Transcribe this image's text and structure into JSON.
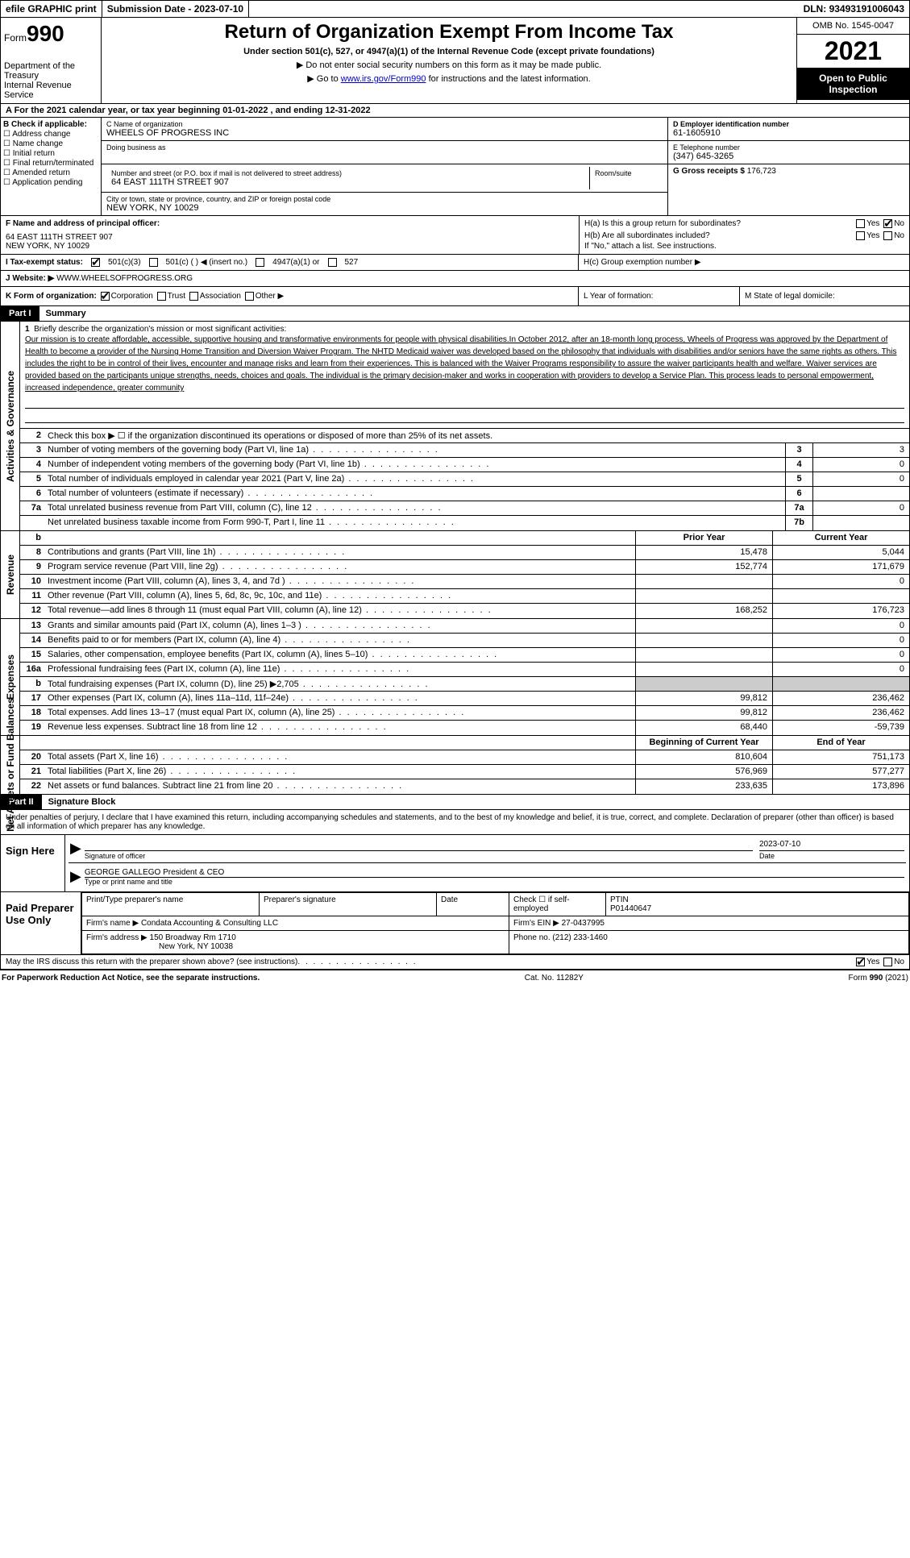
{
  "topbar": {
    "efile": "efile GRAPHIC print",
    "submission_label": "Submission Date - ",
    "submission_date": "2023-07-10",
    "dln_label": "DLN: ",
    "dln": "93493191006043"
  },
  "header": {
    "form_prefix": "Form",
    "form_no": "990",
    "dept": "Department of the Treasury",
    "irs": "Internal Revenue Service",
    "title": "Return of Organization Exempt From Income Tax",
    "subtitle": "Under section 501(c), 527, or 4947(a)(1) of the Internal Revenue Code (except private foundations)",
    "note1": "▶ Do not enter social security numbers on this form as it may be made public.",
    "note2_prefix": "▶ Go to ",
    "note2_link": "www.irs.gov/Form990",
    "note2_suffix": " for instructions and the latest information.",
    "omb": "OMB No. 1545-0047",
    "year": "2021",
    "inspect": "Open to Public Inspection"
  },
  "row_a": "A For the 2021 calendar year, or tax year beginning 01-01-2022   , and ending 12-31-2022",
  "box_b": {
    "title": "B Check if applicable:",
    "items": [
      "Address change",
      "Name change",
      "Initial return",
      "Final return/terminated",
      "Amended return",
      "Application pending"
    ]
  },
  "box_c": {
    "label": "C Name of organization",
    "name": "WHEELS OF PROGRESS INC",
    "dba_label": "Doing business as",
    "addr_label": "Number and street (or P.O. box if mail is not delivered to street address)",
    "room_label": "Room/suite",
    "addr": "64 EAST 111TH STREET 907",
    "city_label": "City or town, state or province, country, and ZIP or foreign postal code",
    "city": "NEW YORK, NY  10029"
  },
  "box_d": {
    "label": "D Employer identification number",
    "val": "61-1605910"
  },
  "box_e": {
    "label": "E Telephone number",
    "val": "(347) 645-3265"
  },
  "box_g": {
    "label": "G Gross receipts $ ",
    "val": "176,723"
  },
  "box_f": {
    "label": "F  Name and address of principal officer:",
    "line1": "64 EAST 111TH STREET 907",
    "line2": "NEW YORK, NY  10029"
  },
  "box_h": {
    "ha": "H(a)  Is this a group return for subordinates?",
    "hb": "H(b)  Are all subordinates included?",
    "hb_note": "If \"No,\" attach a list. See instructions.",
    "hc": "H(c)  Group exemption number ▶",
    "yes": "Yes",
    "no": "No"
  },
  "row_i": {
    "label": "I   Tax-exempt status:",
    "c3": "501(c)(3)",
    "c": "501(c) (  ) ◀ (insert no.)",
    "a1": "4947(a)(1) or",
    "s527": "527"
  },
  "row_j": {
    "label": "J  Website: ▶  ",
    "val": "WWW.WHEELSOFPROGRESS.ORG"
  },
  "row_k": {
    "label": "K Form of organization:",
    "corp": "Corporation",
    "trust": "Trust",
    "assoc": "Association",
    "other": "Other ▶"
  },
  "row_l": "L Year of formation:",
  "row_m": "M State of legal domicile:",
  "part1": {
    "tab": "Part I",
    "title": "Summary"
  },
  "side_labels": {
    "ag": "Activities & Governance",
    "rev": "Revenue",
    "exp": "Expenses",
    "na": "Net Assets or Fund Balances"
  },
  "mission": {
    "num": "1",
    "label": "Briefly describe the organization's mission or most significant activities:",
    "text": "Our mission is to create affordable, accessible, supportive housing and transformative environments for people with physical disabilities.In October 2012, after an 18-month long process, Wheels of Progress was approved by the Department of Health to become a provider of the Nursing Home Transition and Diversion Waiver Program. The NHTD Medicaid waiver was developed based on the philosophy that individuals with disabilities and/or seniors have the same rights as others. This includes the right to be in control of their lives, encounter and manage risks and learn from their experiences. This is balanced with the Waiver Programs responsibility to assure the waiver participants health and welfare. Waiver services are provided based on the participants unique strengths, needs, choices and goals. The individual is the primary decision-maker and works in cooperation with providers to develop a Service Plan. This process leads to personal empowerment, increased independence, greater community"
  },
  "lines_ag": [
    {
      "n": "2",
      "d": "Check this box ▶ ☐ if the organization discontinued its operations or disposed of more than 25% of its net assets."
    },
    {
      "n": "3",
      "d": "Number of voting members of the governing body (Part VI, line 1a)",
      "bn": "3",
      "bv": "3"
    },
    {
      "n": "4",
      "d": "Number of independent voting members of the governing body (Part VI, line 1b)",
      "bn": "4",
      "bv": "0"
    },
    {
      "n": "5",
      "d": "Total number of individuals employed in calendar year 2021 (Part V, line 2a)",
      "bn": "5",
      "bv": "0"
    },
    {
      "n": "6",
      "d": "Total number of volunteers (estimate if necessary)",
      "bn": "6",
      "bv": ""
    },
    {
      "n": "7a",
      "d": "Total unrelated business revenue from Part VIII, column (C), line 12",
      "bn": "7a",
      "bv": "0"
    },
    {
      "n": "",
      "d": "Net unrelated business taxable income from Form 990-T, Part I, line 11",
      "bn": "7b",
      "bv": ""
    }
  ],
  "col_hdrs": {
    "py": "Prior Year",
    "cy": "Current Year"
  },
  "lines_rev": [
    {
      "n": "8",
      "d": "Contributions and grants (Part VIII, line 1h)",
      "py": "15,478",
      "cy": "5,044"
    },
    {
      "n": "9",
      "d": "Program service revenue (Part VIII, line 2g)",
      "py": "152,774",
      "cy": "171,679"
    },
    {
      "n": "10",
      "d": "Investment income (Part VIII, column (A), lines 3, 4, and 7d )",
      "py": "",
      "cy": "0"
    },
    {
      "n": "11",
      "d": "Other revenue (Part VIII, column (A), lines 5, 6d, 8c, 9c, 10c, and 11e)",
      "py": "",
      "cy": ""
    },
    {
      "n": "12",
      "d": "Total revenue—add lines 8 through 11 (must equal Part VIII, column (A), line 12)",
      "py": "168,252",
      "cy": "176,723"
    }
  ],
  "lines_exp": [
    {
      "n": "13",
      "d": "Grants and similar amounts paid (Part IX, column (A), lines 1–3 )",
      "py": "",
      "cy": "0"
    },
    {
      "n": "14",
      "d": "Benefits paid to or for members (Part IX, column (A), line 4)",
      "py": "",
      "cy": "0"
    },
    {
      "n": "15",
      "d": "Salaries, other compensation, employee benefits (Part IX, column (A), lines 5–10)",
      "py": "",
      "cy": "0"
    },
    {
      "n": "16a",
      "d": "Professional fundraising fees (Part IX, column (A), line 11e)",
      "py": "",
      "cy": "0"
    },
    {
      "n": "b",
      "d": "Total fundraising expenses (Part IX, column (D), line 25) ▶2,705",
      "py": "SHADE",
      "cy": "SHADE"
    },
    {
      "n": "17",
      "d": "Other expenses (Part IX, column (A), lines 11a–11d, 11f–24e)",
      "py": "99,812",
      "cy": "236,462"
    },
    {
      "n": "18",
      "d": "Total expenses. Add lines 13–17 (must equal Part IX, column (A), line 25)",
      "py": "99,812",
      "cy": "236,462"
    },
    {
      "n": "19",
      "d": "Revenue less expenses. Subtract line 18 from line 12",
      "py": "68,440",
      "cy": "-59,739"
    }
  ],
  "col_hdrs2": {
    "py": "Beginning of Current Year",
    "cy": "End of Year"
  },
  "lines_na": [
    {
      "n": "20",
      "d": "Total assets (Part X, line 16)",
      "py": "810,604",
      "cy": "751,173"
    },
    {
      "n": "21",
      "d": "Total liabilities (Part X, line 26)",
      "py": "576,969",
      "cy": "577,277"
    },
    {
      "n": "22",
      "d": "Net assets or fund balances. Subtract line 21 from line 20",
      "py": "233,635",
      "cy": "173,896"
    }
  ],
  "part2": {
    "tab": "Part II",
    "title": "Signature Block"
  },
  "sig": {
    "decl": "Under penalties of perjury, I declare that I have examined this return, including accompanying schedules and statements, and to the best of my knowledge and belief, it is true, correct, and complete. Declaration of preparer (other than officer) is based on all information of which preparer has any knowledge.",
    "sign_here": "Sign Here",
    "sig_officer": "Signature of officer",
    "date": "Date",
    "sig_date": "2023-07-10",
    "name_title": "GEORGE GALLEGO  President & CEO",
    "type_name": "Type or print name and title"
  },
  "prep": {
    "label": "Paid Preparer Use Only",
    "h1": "Print/Type preparer's name",
    "h2": "Preparer's signature",
    "h3": "Date",
    "h4_a": "Check ☐ if self-employed",
    "h4_b": "PTIN",
    "ptin": "P01440647",
    "firm_name_l": "Firm's name    ▶ ",
    "firm_name": "Condata Accounting & Consulting LLC",
    "firm_ein_l": "Firm's EIN ▶ ",
    "firm_ein": "27-0437995",
    "firm_addr_l": "Firm's address ▶ ",
    "firm_addr1": "150 Broadway Rm 1710",
    "firm_addr2": "New York, NY  10038",
    "phone_l": "Phone no. ",
    "phone": "(212) 233-1460"
  },
  "discuss": {
    "q": "May the IRS discuss this return with the preparer shown above? (see instructions)",
    "yes": "Yes",
    "no": "No"
  },
  "footer": {
    "left": "For Paperwork Reduction Act Notice, see the separate instructions.",
    "mid": "Cat. No. 11282Y",
    "right": "Form 990 (2021)"
  }
}
